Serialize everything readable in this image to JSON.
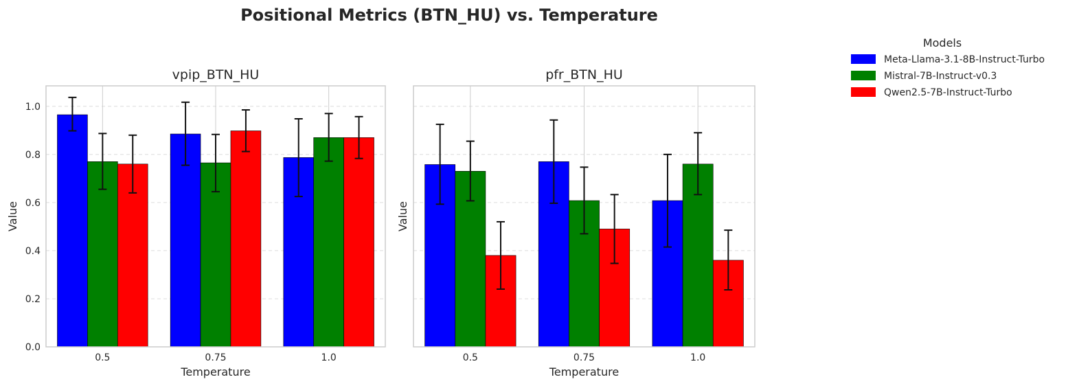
{
  "figure": {
    "title": "Positional Metrics (BTN_HU) vs. Temperature"
  },
  "legend": {
    "title": "Models",
    "placement": "upper-right, outside plot area",
    "entries": [
      {
        "label": "Meta-Llama-3.1-8B-Instruct-Turbo",
        "color": "#0000ff"
      },
      {
        "label": "Mistral-7B-Instruct-v0.3",
        "color": "#008000"
      },
      {
        "label": "Qwen2.5-7B-Instruct-Turbo",
        "color": "#ff0000"
      }
    ]
  },
  "chart_data": [
    {
      "type": "bar",
      "title": "vpip_BTN_HU",
      "xlabel": "Temperature",
      "ylabel": "Value",
      "categories": [
        "0.5",
        "0.75",
        "1.0"
      ],
      "ylim": [
        0,
        1.085
      ],
      "yticks": [
        "0.0",
        "0.2",
        "0.4",
        "0.6",
        "0.8",
        "1.0"
      ],
      "grid": "y dashed, x solid",
      "error_bars": true,
      "series": [
        {
          "name": "Meta-Llama-3.1-8B-Instruct-Turbo",
          "color": "#0000ff",
          "values": [
            0.965,
            0.885,
            0.787
          ],
          "err_low": [
            0.898,
            0.755,
            0.625
          ],
          "err_high": [
            1.037,
            1.017,
            0.948
          ]
        },
        {
          "name": "Mistral-7B-Instruct-v0.3",
          "color": "#008000",
          "values": [
            0.77,
            0.765,
            0.87
          ],
          "err_low": [
            0.655,
            0.645,
            0.772
          ],
          "err_high": [
            0.887,
            0.883,
            0.97
          ]
        },
        {
          "name": "Qwen2.5-7B-Instruct-Turbo",
          "color": "#ff0000",
          "values": [
            0.76,
            0.898,
            0.87
          ],
          "err_low": [
            0.64,
            0.812,
            0.783
          ],
          "err_high": [
            0.88,
            0.985,
            0.957
          ]
        }
      ]
    },
    {
      "type": "bar",
      "title": "pfr_BTN_HU",
      "xlabel": "Temperature",
      "ylabel": "Value",
      "categories": [
        "0.5",
        "0.75",
        "1.0"
      ],
      "ylim": [
        0,
        1.085
      ],
      "grid": "y dashed, x solid",
      "error_bars": true,
      "shared_y": true,
      "series": [
        {
          "name": "Meta-Llama-3.1-8B-Instruct-Turbo",
          "color": "#0000ff",
          "values": [
            0.758,
            0.77,
            0.608
          ],
          "err_low": [
            0.593,
            0.597,
            0.415
          ],
          "err_high": [
            0.925,
            0.943,
            0.8
          ]
        },
        {
          "name": "Mistral-7B-Instruct-v0.3",
          "color": "#008000",
          "values": [
            0.73,
            0.608,
            0.76
          ],
          "err_low": [
            0.607,
            0.47,
            0.633
          ],
          "err_high": [
            0.855,
            0.747,
            0.89
          ]
        },
        {
          "name": "Qwen2.5-7B-Instruct-Turbo",
          "color": "#ff0000",
          "values": [
            0.38,
            0.49,
            0.36
          ],
          "err_low": [
            0.24,
            0.347,
            0.237
          ],
          "err_high": [
            0.52,
            0.633,
            0.485
          ]
        }
      ]
    }
  ]
}
